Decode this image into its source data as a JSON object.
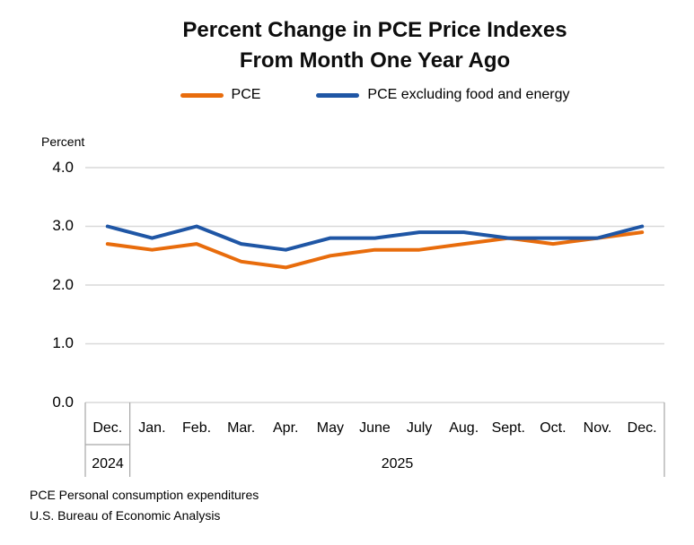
{
  "title": {
    "line1": "Percent Change in PCE Price Indexes",
    "line2": "From Month One Year Ago"
  },
  "legend": [
    {
      "label": "PCE",
      "color": "#E86C0C"
    },
    {
      "label": "PCE excluding food and energy",
      "color": "#1F56A5"
    }
  ],
  "axis": {
    "y_unit_label": "Percent",
    "y_ticks": [
      "4.0",
      "3.0",
      "2.0",
      "1.0",
      "0.0"
    ],
    "months": [
      "Dec.",
      "Jan.",
      "Feb.",
      "Mar.",
      "Apr.",
      "May",
      "June",
      "July",
      "Aug.",
      "Sept.",
      "Oct.",
      "Nov.",
      "Dec."
    ],
    "years": [
      {
        "label": "2024",
        "span": 1
      },
      {
        "label": "2025",
        "span": 12
      }
    ]
  },
  "footnotes": [
    "PCE Personal consumption expenditures",
    "U.S. Bureau of Economic Analysis"
  ],
  "colors": {
    "gridline": "#D9D9D9",
    "axis_separator": "#A6A6A6",
    "pce": "#E86C0C",
    "core_pce": "#1F56A5"
  },
  "chart_data": {
    "type": "line",
    "title": "Percent Change in PCE Price Indexes From Month One Year Ago",
    "ylabel": "Percent",
    "ylim": [
      0.0,
      4.0
    ],
    "y_tick_step": 1.0,
    "grid": true,
    "legend_position": "top",
    "categories": [
      "Dec. 2024",
      "Jan. 2025",
      "Feb. 2025",
      "Mar. 2025",
      "Apr. 2025",
      "May 2025",
      "June 2025",
      "July 2025",
      "Aug. 2025",
      "Sept. 2025",
      "Oct. 2025",
      "Nov. 2025",
      "Dec. 2025"
    ],
    "series": [
      {
        "name": "PCE",
        "color": "#E86C0C",
        "values": [
          2.7,
          2.6,
          2.7,
          2.4,
          2.3,
          2.5,
          2.6,
          2.6,
          2.7,
          2.8,
          2.7,
          2.8,
          2.9
        ]
      },
      {
        "name": "PCE excluding food and energy",
        "color": "#1F56A5",
        "values": [
          3.0,
          2.8,
          3.0,
          2.7,
          2.6,
          2.8,
          2.8,
          2.9,
          2.9,
          2.8,
          2.8,
          2.8,
          3.0
        ]
      }
    ]
  }
}
